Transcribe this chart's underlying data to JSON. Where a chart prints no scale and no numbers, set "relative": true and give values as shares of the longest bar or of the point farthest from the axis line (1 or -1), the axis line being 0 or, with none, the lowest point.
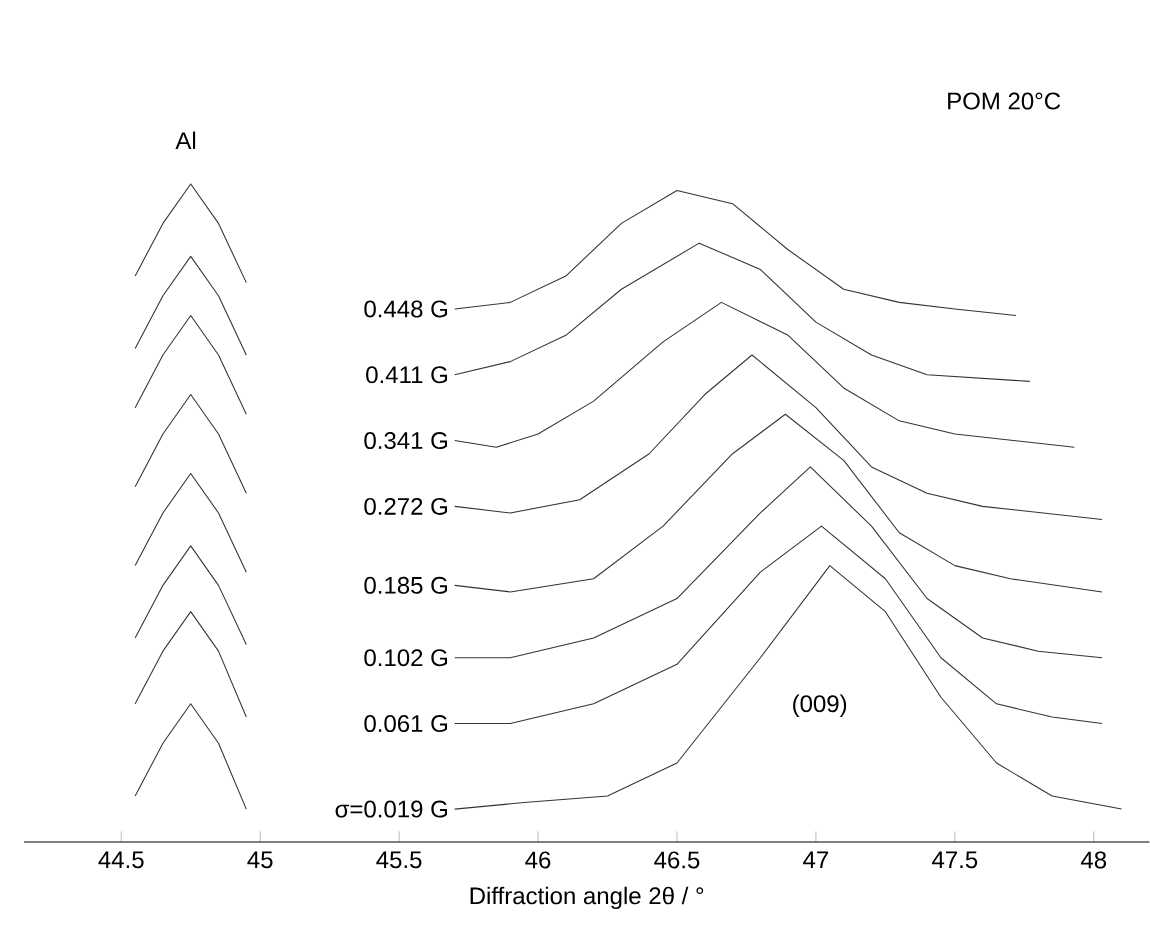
{
  "chart_data": {
    "type": "line",
    "relative": true,
    "xlabel": "Diffraction angle 2θ / °",
    "xlim": [
      44.15,
      48.2
    ],
    "xticks": [
      44.5,
      45,
      45.5,
      46,
      46.5,
      47,
      47.5,
      48
    ],
    "annotations": [
      "POM 20°C",
      "Al",
      "(009)"
    ],
    "series": [
      {
        "name": "0.448 G",
        "color": "#333333",
        "x": [
          44.55,
          44.65,
          44.75,
          44.85,
          44.95,
          45.3,
          45.7,
          45.9,
          46.1,
          46.3,
          46.5,
          46.7,
          46.9,
          47.1,
          47.3,
          47.5,
          47.72
        ],
        "values": [
          0.86,
          0.94,
          1.0,
          0.94,
          0.85,
          null,
          0.81,
          0.82,
          0.86,
          0.94,
          0.99,
          0.97,
          0.9,
          0.84,
          0.82,
          0.81,
          0.8
        ]
      },
      {
        "name": "0.411 G",
        "color": "#333333",
        "x": [
          44.55,
          44.65,
          44.75,
          44.85,
          44.95,
          45.3,
          45.7,
          45.9,
          46.1,
          46.3,
          46.58,
          46.8,
          47.0,
          47.2,
          47.4,
          47.77
        ],
        "values": [
          0.75,
          0.83,
          0.89,
          0.83,
          0.74,
          null,
          0.71,
          0.73,
          0.77,
          0.84,
          0.91,
          0.87,
          0.79,
          0.74,
          0.71,
          0.7
        ]
      },
      {
        "name": "0.341 G",
        "color": "#333333",
        "x": [
          44.55,
          44.65,
          44.75,
          44.85,
          44.95,
          45.3,
          45.7,
          45.85,
          46.0,
          46.2,
          46.45,
          46.66,
          46.9,
          47.1,
          47.3,
          47.5,
          47.93
        ],
        "values": [
          0.66,
          0.74,
          0.8,
          0.74,
          0.65,
          null,
          0.61,
          0.6,
          0.62,
          0.67,
          0.76,
          0.82,
          0.77,
          0.69,
          0.64,
          0.62,
          0.6
        ]
      },
      {
        "name": "0.272 G",
        "color": "#333333",
        "x": [
          44.55,
          44.65,
          44.75,
          44.85,
          44.95,
          45.3,
          45.7,
          45.9,
          46.15,
          46.4,
          46.6,
          46.77,
          47.0,
          47.2,
          47.4,
          47.6,
          48.03
        ],
        "values": [
          0.54,
          0.62,
          0.68,
          0.62,
          0.53,
          null,
          0.51,
          0.5,
          0.52,
          0.59,
          0.68,
          0.74,
          0.66,
          0.57,
          0.53,
          0.51,
          0.49
        ]
      },
      {
        "name": "0.185 G",
        "color": "#333333",
        "x": [
          44.55,
          44.65,
          44.75,
          44.85,
          44.95,
          45.3,
          45.7,
          45.9,
          46.2,
          46.45,
          46.7,
          46.89,
          47.1,
          47.3,
          47.5,
          47.7,
          48.03
        ],
        "values": [
          0.42,
          0.5,
          0.56,
          0.5,
          0.41,
          null,
          0.39,
          0.38,
          0.4,
          0.48,
          0.59,
          0.65,
          0.58,
          0.47,
          0.42,
          0.4,
          0.38
        ]
      },
      {
        "name": "0.102 G",
        "color": "#333333",
        "x": [
          44.55,
          44.65,
          44.75,
          44.85,
          44.95,
          45.3,
          45.7,
          45.9,
          46.2,
          46.5,
          46.8,
          46.98,
          47.2,
          47.4,
          47.6,
          47.8,
          48.03
        ],
        "values": [
          0.31,
          0.39,
          0.45,
          0.39,
          0.3,
          null,
          0.28,
          0.28,
          0.31,
          0.37,
          0.5,
          0.57,
          0.48,
          0.37,
          0.31,
          0.29,
          0.28
        ]
      },
      {
        "name": "0.061 G",
        "color": "#333333",
        "x": [
          44.55,
          44.65,
          44.75,
          44.85,
          44.95,
          45.3,
          45.7,
          45.9,
          46.2,
          46.5,
          46.8,
          47.02,
          47.25,
          47.45,
          47.65,
          47.85,
          48.03
        ],
        "values": [
          0.21,
          0.29,
          0.35,
          0.29,
          0.19,
          null,
          0.18,
          0.18,
          0.21,
          0.27,
          0.41,
          0.48,
          0.4,
          0.28,
          0.21,
          0.19,
          0.18
        ]
      },
      {
        "name": "σ=0.019 G",
        "color": "#333333",
        "x": [
          44.55,
          44.65,
          44.75,
          44.85,
          44.95,
          45.3,
          45.7,
          45.95,
          46.25,
          46.5,
          46.8,
          47.05,
          47.25,
          47.45,
          47.65,
          47.85,
          48.1
        ],
        "values": [
          0.07,
          0.15,
          0.21,
          0.15,
          0.05,
          null,
          0.05,
          0.06,
          0.07,
          0.12,
          0.28,
          0.42,
          0.35,
          0.22,
          0.12,
          0.07,
          0.05
        ]
      }
    ]
  }
}
